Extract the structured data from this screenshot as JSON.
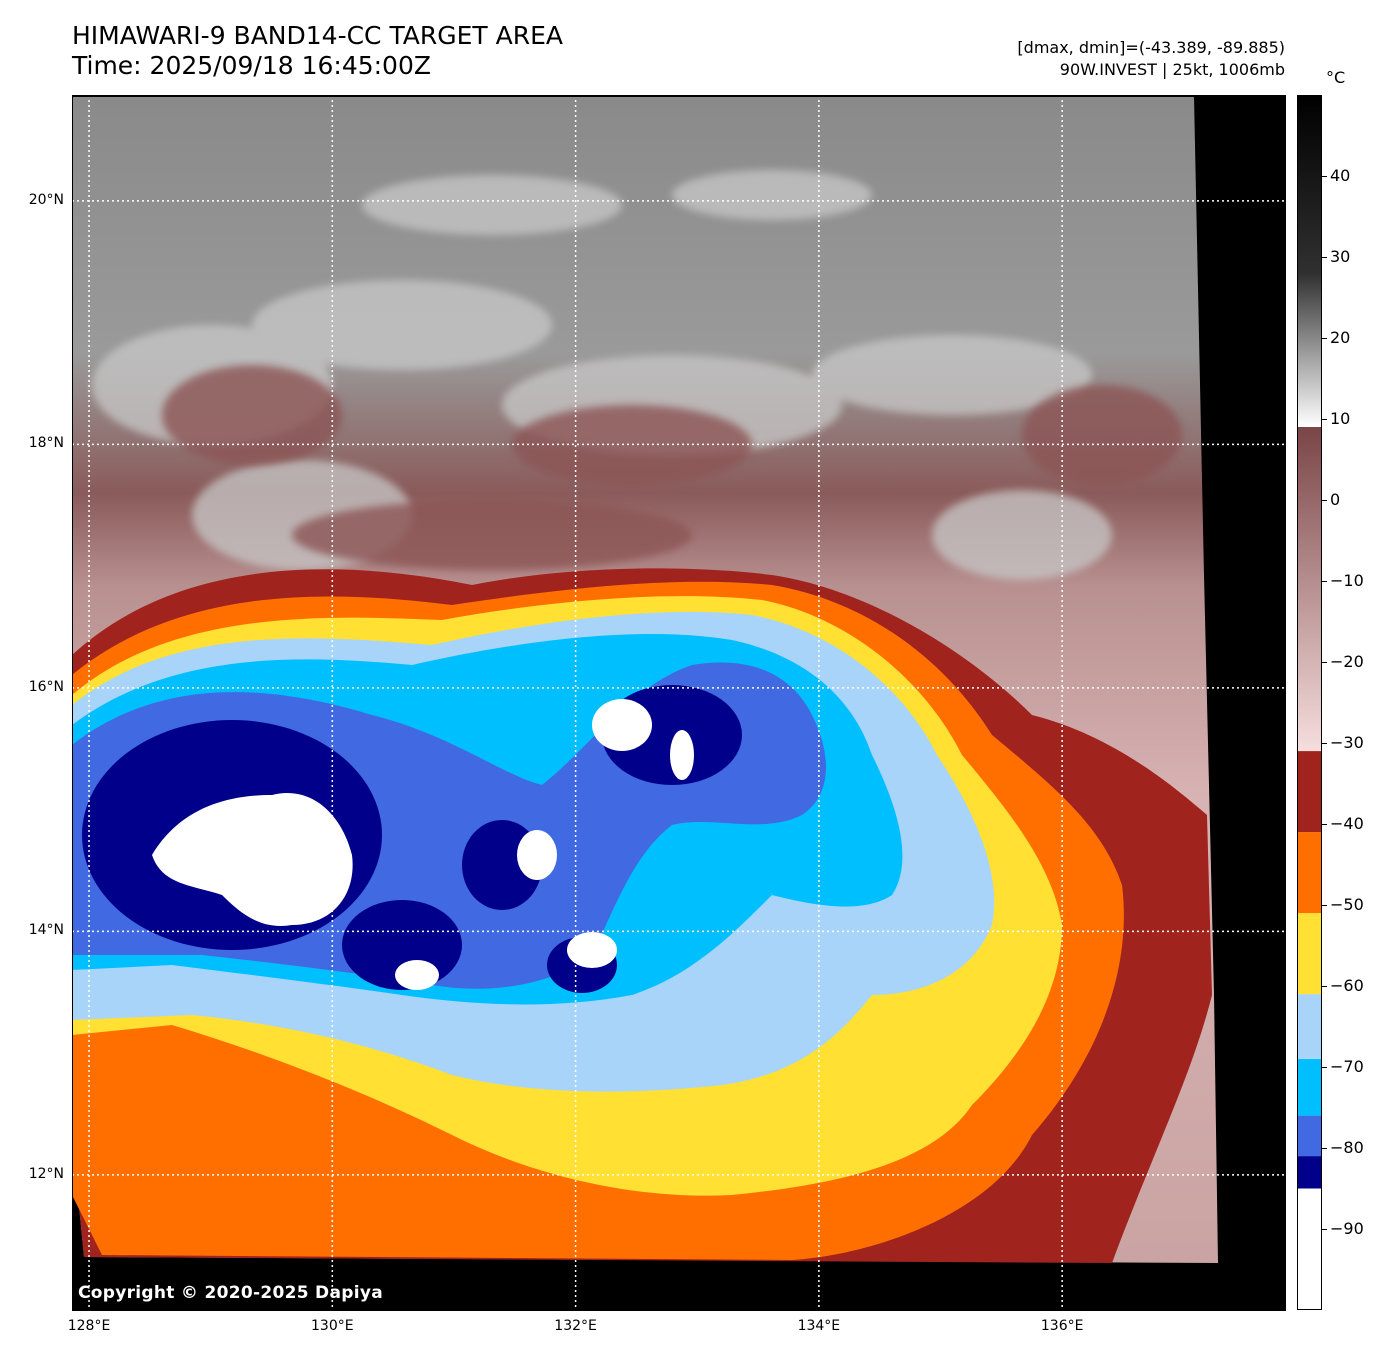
{
  "header": {
    "title_line1": "HIMAWARI-9 BAND14-CC TARGET AREA",
    "title_line2": "Time: 2025/09/18 16:45:00Z",
    "info_line1": "[dmax, dmin]=(-43.389, -89.885)",
    "info_line2": "90W.INVEST | 25kt, 1006mb"
  },
  "map": {
    "copyright": "Copyright © 2020-2025 Dapiya",
    "lat_labels": [
      "20°N",
      "18°N",
      "16°N",
      "14°N",
      "12°N"
    ],
    "lon_labels": [
      "128°E",
      "130°E",
      "132°E",
      "134°E",
      "136°E"
    ],
    "lat_values": [
      20,
      18,
      16,
      14,
      12
    ],
    "lon_values": [
      128,
      130,
      132,
      134,
      136
    ],
    "extent": {
      "lon_min": 127.86,
      "lon_max": 137.84,
      "lat_min": 10.89,
      "lat_max": 20.87
    }
  },
  "colorbar": {
    "unit": "°C",
    "tick_labels": [
      "40",
      "30",
      "20",
      "10",
      "0",
      "−10",
      "−20",
      "−30",
      "−40",
      "−50",
      "−60",
      "−70",
      "−80",
      "−90"
    ],
    "tick_values": [
      40,
      30,
      20,
      10,
      0,
      -10,
      -20,
      -30,
      -40,
      -50,
      -60,
      -70,
      -80,
      -90
    ],
    "range": [
      -100,
      50
    ],
    "segments": [
      {
        "from": -100,
        "to": -85,
        "color": "#ffffff"
      },
      {
        "from": -85,
        "to": -81,
        "color": "#00008b"
      },
      {
        "from": -81,
        "to": -76,
        "color": "#4169e1"
      },
      {
        "from": -76,
        "to": -69,
        "color": "#00bfff"
      },
      {
        "from": -69,
        "to": -61,
        "color": "#a8d4fa"
      },
      {
        "from": -61,
        "to": -51,
        "color": "#ffe033"
      },
      {
        "from": -51,
        "to": -41,
        "color": "#ff6f00"
      },
      {
        "from": -41,
        "to": -31,
        "color": "#a1231e"
      }
    ],
    "gradient_stops": [
      {
        "t": -31,
        "color": "#f6dede"
      },
      {
        "t": 9,
        "color": "#7a4546"
      },
      {
        "t": 9,
        "color": "#ffffff"
      },
      {
        "t": 28,
        "color": "#303030"
      },
      {
        "t": 50,
        "color": "#000000"
      }
    ]
  }
}
